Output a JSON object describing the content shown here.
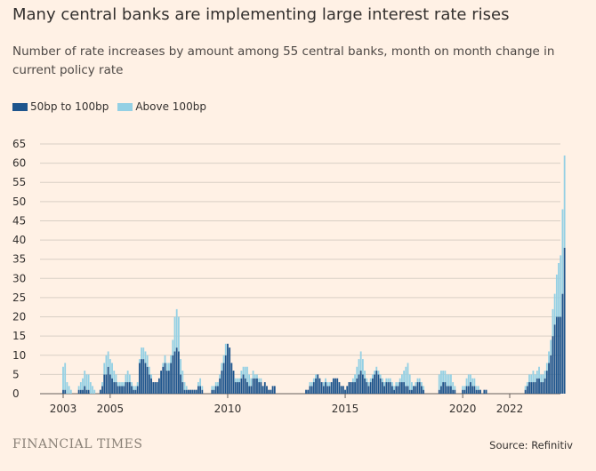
{
  "title": "Many central banks are implementing large interest rate rises",
  "subtitle": "Number of rate increases by amount among 55 central banks, month on month change in current policy rate",
  "source": "Source: Refinitiv",
  "logo": "FINANCIAL TIMES",
  "colors": {
    "background": "#fff1e5",
    "series_50_100": "#1e558d",
    "series_above_100": "#94d0e4",
    "grid": "#d9cfc5"
  },
  "chart_data": {
    "type": "bar",
    "stacked": true,
    "title": "Many central banks are implementing large interest rate rises",
    "ylabel": "",
    "xlabel": "",
    "ylim": [
      0,
      65
    ],
    "yticks": [
      0,
      5,
      10,
      15,
      20,
      25,
      30,
      35,
      40,
      45,
      50,
      55,
      60,
      65
    ],
    "xticks": [
      "2003",
      "2005",
      "2010",
      "2015",
      "2020",
      "2022"
    ],
    "legend_position": "top-left",
    "x_start": "2002-01",
    "x_end": "2022-06",
    "frequency": "monthly",
    "series": [
      {
        "name": "50bp to 100bp",
        "values": [
          0,
          0,
          0,
          0,
          0,
          0,
          0,
          0,
          0,
          0,
          0,
          0,
          1,
          1,
          0,
          0,
          0,
          0,
          0,
          0,
          1,
          1,
          1,
          2,
          1,
          1,
          0,
          0,
          0,
          0,
          0,
          1,
          2,
          5,
          5,
          7,
          5,
          4,
          3,
          3,
          2,
          2,
          2,
          2,
          3,
          3,
          3,
          2,
          1,
          1,
          2,
          8,
          9,
          9,
          8,
          7,
          5,
          4,
          3,
          3,
          3,
          4,
          6,
          7,
          8,
          6,
          6,
          8,
          10,
          11,
          12,
          11,
          5,
          3,
          1,
          1,
          1,
          1,
          1,
          1,
          1,
          2,
          2,
          1,
          0,
          0,
          0,
          0,
          1,
          1,
          2,
          2,
          4,
          6,
          8,
          10,
          13,
          12,
          8,
          6,
          3,
          3,
          3,
          4,
          5,
          4,
          3,
          2,
          2,
          4,
          4,
          4,
          3,
          3,
          2,
          3,
          2,
          1,
          1,
          2,
          2,
          0,
          0,
          0,
          0,
          0,
          0,
          0,
          0,
          0,
          0,
          0,
          0,
          0,
          0,
          0,
          1,
          1,
          2,
          2,
          3,
          4,
          5,
          4,
          3,
          2,
          3,
          2,
          2,
          3,
          4,
          4,
          4,
          3,
          2,
          2,
          1,
          2,
          3,
          3,
          3,
          3,
          4,
          5,
          6,
          5,
          4,
          3,
          2,
          3,
          4,
          5,
          6,
          5,
          4,
          3,
          2,
          3,
          3,
          3,
          2,
          1,
          2,
          2,
          3,
          3,
          3,
          2,
          2,
          1,
          1,
          2,
          2,
          3,
          3,
          2,
          1,
          0,
          0,
          0,
          0,
          0,
          0,
          0,
          1,
          2,
          3,
          3,
          2,
          2,
          2,
          1,
          1,
          0,
          0,
          0,
          1,
          1,
          2,
          2,
          3,
          2,
          2,
          1,
          1,
          1,
          0,
          1,
          1,
          0,
          0,
          0,
          0,
          0,
          0,
          0,
          0,
          0,
          0,
          0,
          0,
          0,
          0,
          0,
          0,
          0,
          0,
          0,
          1,
          2,
          3,
          3,
          3,
          3,
          4,
          4,
          3,
          3,
          4,
          6,
          8,
          10,
          15,
          18,
          20,
          20,
          20,
          26,
          38,
          0,
          0,
          0,
          0,
          0,
          0,
          0
        ]
      },
      {
        "name": "Above 100bp",
        "values": [
          0,
          0,
          0,
          0,
          0,
          0,
          0,
          0,
          0,
          0,
          0,
          0,
          6,
          7,
          3,
          2,
          1,
          0,
          0,
          0,
          1,
          2,
          3,
          4,
          4,
          4,
          3,
          2,
          1,
          0,
          0,
          0,
          1,
          3,
          5,
          4,
          4,
          4,
          3,
          2,
          1,
          1,
          1,
          1,
          2,
          3,
          2,
          1,
          1,
          1,
          1,
          1,
          3,
          3,
          3,
          3,
          2,
          1,
          0,
          0,
          0,
          0,
          0,
          1,
          2,
          2,
          2,
          2,
          4,
          9,
          10,
          9,
          4,
          3,
          2,
          1,
          0,
          0,
          0,
          0,
          0,
          1,
          2,
          1,
          0,
          0,
          0,
          0,
          1,
          1,
          1,
          1,
          1,
          2,
          2,
          3,
          0,
          0,
          0,
          0,
          1,
          1,
          1,
          2,
          2,
          3,
          4,
          3,
          2,
          2,
          1,
          1,
          1,
          1,
          0,
          0,
          0,
          0,
          0,
          0,
          0,
          0,
          0,
          0,
          0,
          0,
          0,
          0,
          0,
          0,
          0,
          0,
          0,
          0,
          0,
          0,
          0,
          0,
          1,
          1,
          1,
          1,
          0,
          0,
          0,
          1,
          1,
          1,
          1,
          0,
          0,
          0,
          0,
          0,
          0,
          0,
          0,
          0,
          0,
          0,
          1,
          2,
          3,
          4,
          5,
          4,
          2,
          1,
          1,
          1,
          1,
          1,
          1,
          1,
          1,
          1,
          1,
          1,
          1,
          1,
          1,
          1,
          1,
          1,
          1,
          2,
          3,
          5,
          6,
          4,
          2,
          0,
          1,
          1,
          1,
          1,
          1,
          0,
          0,
          0,
          0,
          0,
          0,
          0,
          4,
          4,
          3,
          3,
          3,
          3,
          3,
          2,
          1,
          0,
          0,
          0,
          1,
          1,
          2,
          3,
          2,
          2,
          2,
          1,
          1,
          0,
          0,
          0,
          0,
          0,
          0,
          0,
          0,
          0,
          0,
          0,
          0,
          0,
          0,
          0,
          0,
          0,
          0,
          0,
          0,
          0,
          0,
          0,
          1,
          1,
          2,
          2,
          3,
          2,
          2,
          3,
          2,
          2,
          2,
          2,
          3,
          4,
          7,
          8,
          11,
          14,
          16,
          22,
          24,
          0,
          0,
          0,
          0,
          0,
          0,
          0
        ]
      }
    ]
  }
}
